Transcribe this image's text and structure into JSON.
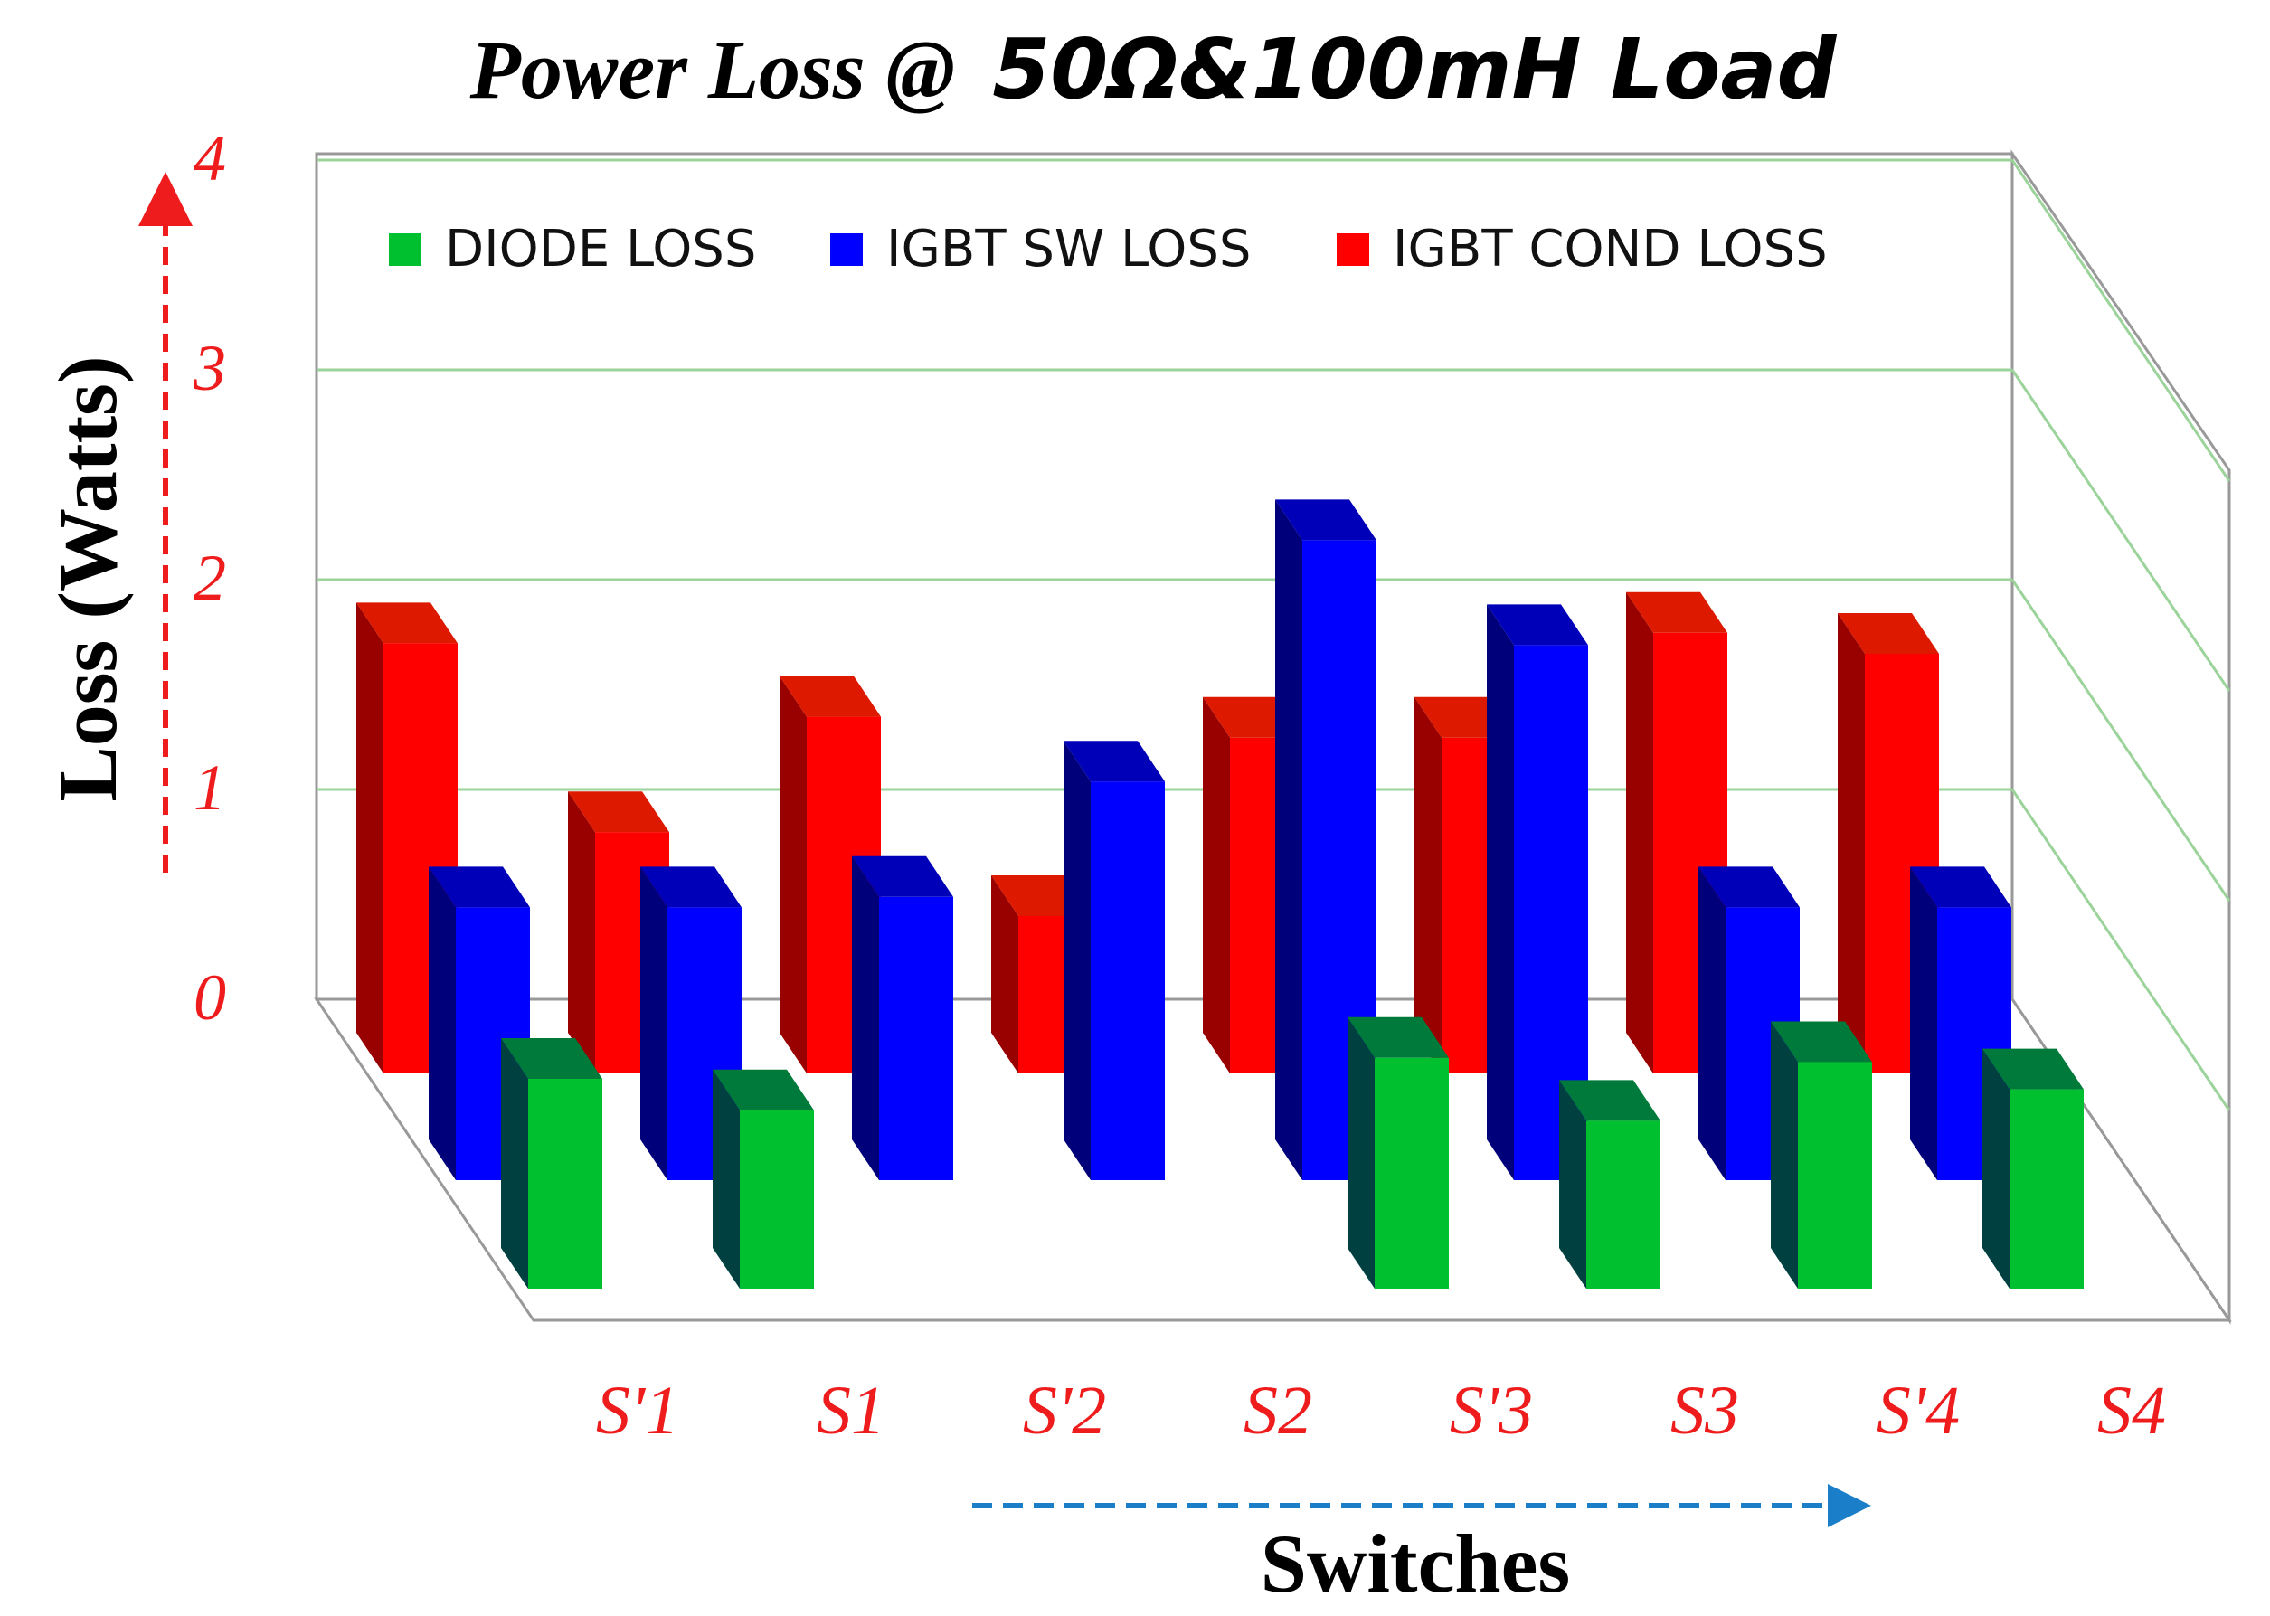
{
  "chart_data": {
    "type": "bar",
    "title": {
      "part1": "Power Loss @",
      "part2": "50Ω&100mH Load"
    },
    "ylabel": "Loss (Watts)",
    "xlabel": "Switches",
    "ylim": [
      0,
      4
    ],
    "yticks": [
      "0",
      "1",
      "2",
      "3",
      "4"
    ],
    "grid": true,
    "legend_position": "top",
    "categories": [
      "S'1",
      "S1",
      "S'2",
      "S2",
      "S'3",
      "S3",
      "S'4",
      "S4"
    ],
    "series": [
      {
        "name": "IGBT COND LOSS",
        "color": "#ff0000",
        "values": [
          2.05,
          1.15,
          1.7,
          0.75,
          1.6,
          1.6,
          2.1,
          2.0
        ]
      },
      {
        "name": "IGBT SW LOSS",
        "color": "#0000ff",
        "values": [
          1.3,
          1.3,
          1.35,
          1.9,
          3.05,
          2.55,
          1.3,
          1.3
        ]
      },
      {
        "name": "DIODE LOSS",
        "color": "#00c030",
        "values": [
          1.0,
          0.85,
          0,
          0,
          1.1,
          0.8,
          1.08,
          0.95
        ]
      }
    ],
    "legend_order": [
      "DIODE LOSS",
      "IGBT SW LOSS",
      "IGBT COND LOSS"
    ],
    "colors": {
      "axis_text": "#ee1c1c",
      "y_arrow": "#ee1c1c",
      "x_arrow": "#1a7fc8",
      "grid": "#9bd39b",
      "frame": "#888888"
    }
  }
}
